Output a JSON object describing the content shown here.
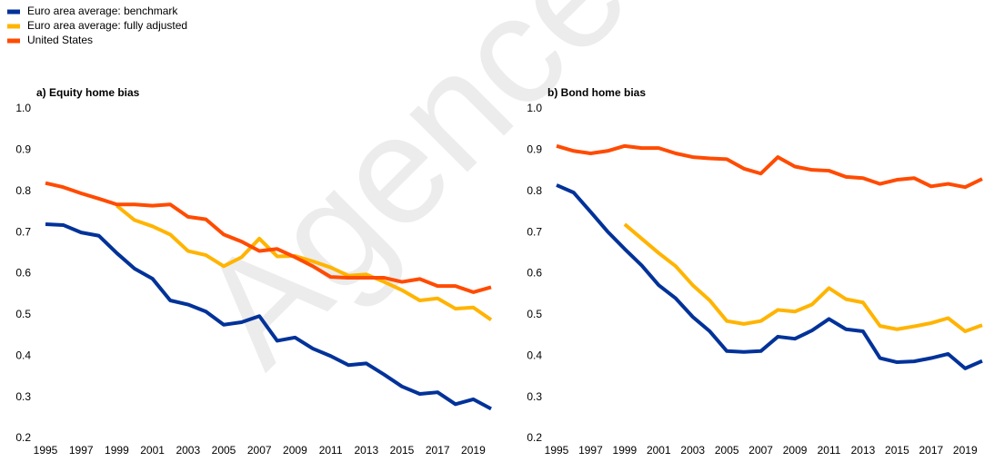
{
  "watermark": "Agence",
  "chart_data": [
    {
      "type": "line",
      "title": "a) Equity home bias",
      "x": [
        1995,
        1996,
        1997,
        1998,
        1999,
        2000,
        2001,
        2002,
        2003,
        2004,
        2005,
        2006,
        2007,
        2008,
        2009,
        2010,
        2011,
        2012,
        2013,
        2014,
        2015,
        2016,
        2017,
        2018,
        2019,
        2020
      ],
      "xlim": [
        1995,
        2020
      ],
      "xticks": [
        1995,
        1997,
        1999,
        2001,
        2003,
        2005,
        2007,
        2009,
        2011,
        2013,
        2015,
        2017,
        2019
      ],
      "ylim": [
        0.2,
        1
      ],
      "yticks": [
        0.2,
        0.3,
        0.4,
        0.5,
        0.6,
        0.7,
        0.8,
        0.9,
        {
          "value": 1,
          "label": "1.0"
        }
      ],
      "series": [
        {
          "name": "Euro area average: benchmark",
          "color": "#003299",
          "values": [
            0.72,
            0.718,
            0.7,
            0.692,
            0.65,
            0.612,
            0.588,
            0.535,
            0.525,
            0.508,
            0.476,
            0.482,
            0.497,
            0.437,
            0.445,
            0.418,
            0.4,
            0.378,
            0.382,
            0.355,
            0.326,
            0.308,
            0.312,
            0.283,
            0.295,
            0.272
          ]
        },
        {
          "name": "Euro area average: fully adjusted",
          "color": "#ffb400",
          "values": [
            null,
            null,
            null,
            null,
            0.765,
            0.73,
            0.715,
            0.695,
            0.655,
            0.645,
            0.618,
            0.64,
            0.685,
            0.642,
            0.643,
            0.63,
            0.615,
            0.595,
            0.598,
            0.58,
            0.56,
            0.535,
            0.54,
            0.515,
            0.518,
            0.488
          ]
        },
        {
          "name": "United States",
          "color": "#ff4b00",
          "values": [
            0.82,
            0.81,
            0.795,
            0.782,
            0.768,
            0.768,
            0.765,
            0.768,
            0.738,
            0.732,
            0.695,
            0.678,
            0.655,
            0.66,
            0.64,
            0.618,
            0.592,
            0.59,
            0.59,
            0.59,
            0.58,
            0.587,
            0.57,
            0.57,
            0.555,
            0.567
          ]
        }
      ]
    },
    {
      "type": "line",
      "title": "b) Bond home bias",
      "x": [
        1995,
        1996,
        1997,
        1998,
        1999,
        2000,
        2001,
        2002,
        2003,
        2004,
        2005,
        2006,
        2007,
        2008,
        2009,
        2010,
        2011,
        2012,
        2013,
        2014,
        2015,
        2016,
        2017,
        2018,
        2019,
        2020
      ],
      "xlim": [
        1995,
        2020
      ],
      "xticks": [
        1995,
        1997,
        1999,
        2001,
        2003,
        2005,
        2007,
        2009,
        2011,
        2013,
        2015,
        2017,
        2019
      ],
      "ylim": [
        0.2,
        1
      ],
      "yticks": [
        0.2,
        0.3,
        0.4,
        0.5,
        0.6,
        0.7,
        0.8,
        0.9,
        {
          "value": 1,
          "label": "1.0"
        }
      ],
      "series": [
        {
          "color": "#003299",
          "values": [
            0.815,
            0.797,
            0.75,
            0.702,
            0.66,
            0.62,
            0.572,
            0.54,
            0.495,
            0.46,
            0.412,
            0.41,
            0.412,
            0.447,
            0.442,
            0.462,
            0.49,
            0.465,
            0.46,
            0.395,
            0.385,
            0.387,
            0.395,
            0.405,
            0.37,
            0.388
          ]
        },
        {
          "color": "#ffb400",
          "values": [
            null,
            null,
            null,
            null,
            0.72,
            0.685,
            0.65,
            0.618,
            0.572,
            0.535,
            0.485,
            0.478,
            0.485,
            0.512,
            0.508,
            0.525,
            0.565,
            0.538,
            0.53,
            0.473,
            0.465,
            0.472,
            0.48,
            0.492,
            0.46,
            0.475
          ]
        },
        {
          "color": "#ff4b00",
          "values": [
            0.91,
            0.898,
            0.892,
            0.898,
            0.91,
            0.905,
            0.905,
            0.892,
            0.883,
            0.88,
            0.878,
            0.855,
            0.843,
            0.883,
            0.86,
            0.852,
            0.85,
            0.835,
            0.832,
            0.818,
            0.828,
            0.832,
            0.812,
            0.818,
            0.81,
            0.83
          ]
        }
      ]
    }
  ]
}
